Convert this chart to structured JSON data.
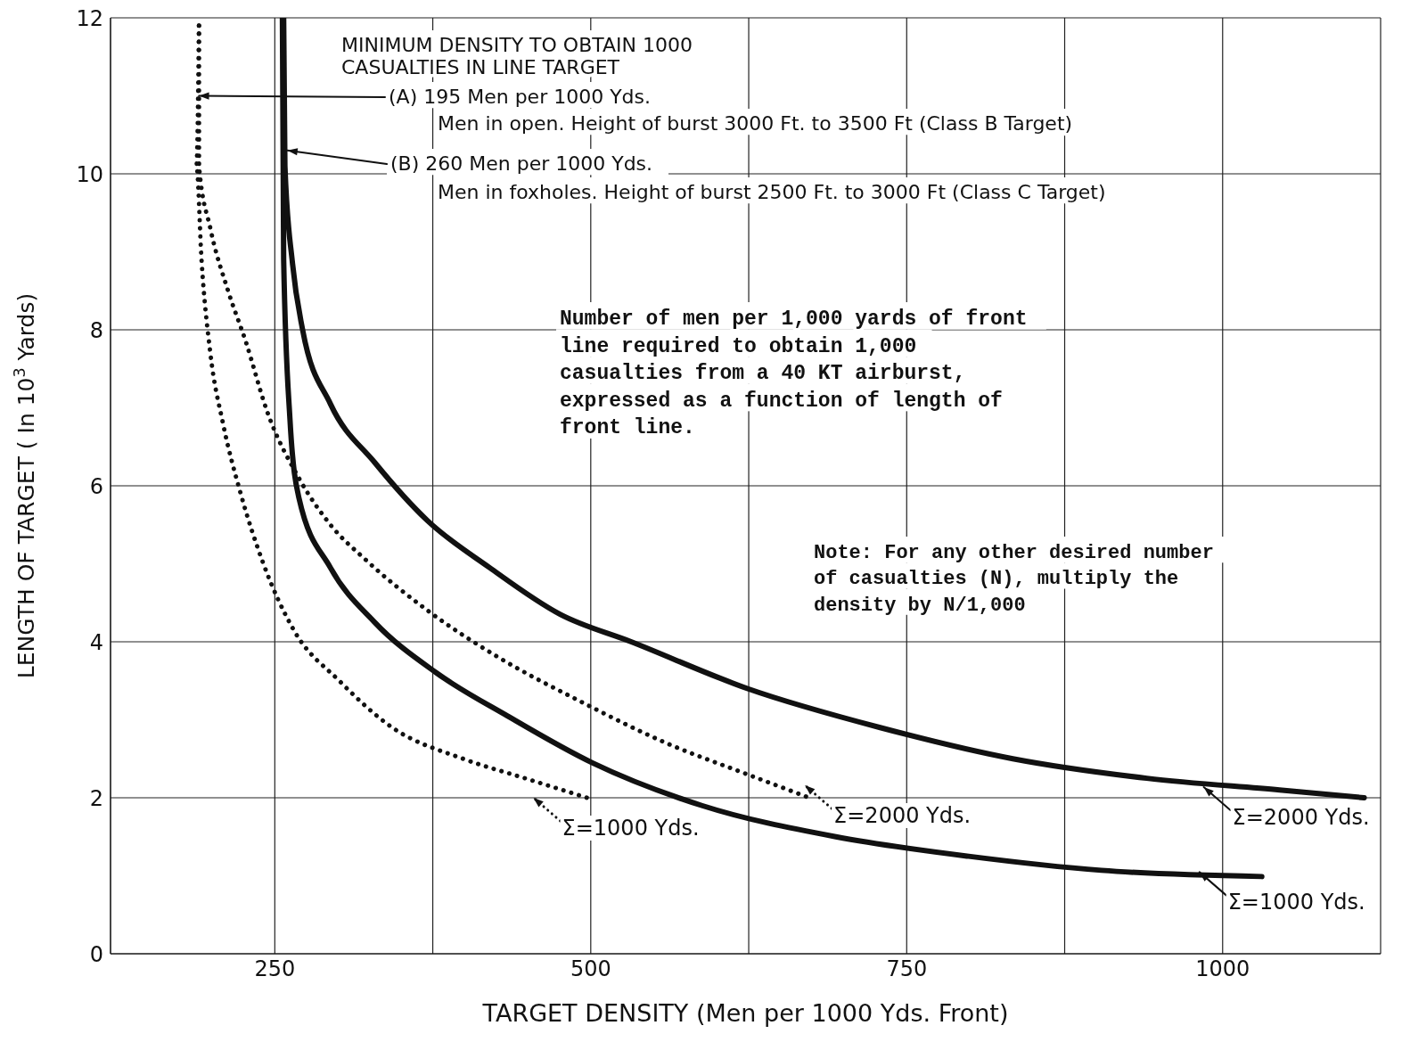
{
  "chart_data": {
    "type": "line",
    "title": "MINIMUM DENSITY TO OBTAIN 1000 CASUALTIES IN LINE TARGET",
    "xlabel": "TARGET DENSITY (Men per 1000 Yds. Front)",
    "ylabel": "LENGTH OF TARGET ( In 10$^{3}$ Yards)",
    "xlim": [
      120,
      1125
    ],
    "xticks": [
      250,
      {
        "value": 375,
        "label": null
      },
      500,
      {
        "value": 625,
        "label": null
      },
      750,
      {
        "value": 875,
        "label": null
      },
      1000,
      {
        "value": 1125,
        "label": null
      }
    ],
    "ylim": [
      0,
      12
    ],
    "yticks": [
      0,
      2,
      4,
      6,
      8,
      10,
      12
    ],
    "grid": true,
    "legend": "bottom right",
    "marker": "none",
    "annotations": [
      {
        "text": "(A) 195 Men per 1000 Yds.",
        "x": 190,
        "y": 11
      },
      "Men in open. Height of burst 3000 Ft. to 3500 Ft (Class B Target)",
      {
        "text": "(B) 260 Men per 1000 Yds.",
        "x": 260,
        "y": 10.3
      },
      "Men in foxholes. Height of burst 2500 Ft. to 3000 Ft (Class C Target)",
      "Number of men per 1,000 yards of front line required to obtain 1,000 casualties from a 40 KT airburst, expressed as a function of length of front line.",
      "Note: For any other desired number of casualties (N), multiply the density by N/1,000"
    ],
    "series": [
      {
        "name": "Σ=1000 Yds.",
        "color": "#111111",
        "line_style": "dotted",
        "x": [
          190,
          188,
          192,
          199,
          209,
          223,
          241,
          265,
          301,
          343,
          399,
          448,
          497
        ],
        "values": [
          11.9,
          10.1,
          8.9,
          7.7,
          6.8,
          5.9,
          5.0,
          4.15,
          3.5,
          2.9,
          2.5,
          2.25,
          2.0
        ]
      },
      {
        "name": "Σ=2000 Yds.",
        "color": "#111111",
        "line_style": "dotted",
        "x": [
          190,
          190,
          199,
          213,
          227,
          244,
          269,
          294,
          322,
          371,
          427,
          490,
          560,
          624,
          673
        ],
        "values": [
          11.9,
          10.1,
          9.3,
          8.5,
          7.85,
          6.95,
          6.1,
          5.5,
          5.05,
          4.4,
          3.8,
          3.25,
          2.7,
          2.3,
          2.0
        ]
      },
      {
        "name": "Σ=1000 Yds.",
        "color": "#111111",
        "line_style": "solid",
        "x": [
          256,
          257,
          262,
          269,
          294,
          329,
          378,
          434,
          501,
          588,
          694,
          799,
          904,
          1031
        ],
        "values": [
          12,
          8.9,
          6.85,
          5.85,
          4.95,
          4.25,
          3.6,
          3.05,
          2.45,
          1.9,
          1.5,
          1.25,
          1.07,
          0.99
        ]
      },
      {
        "name": "Σ=2000 Yds.",
        "color": "#111111",
        "line_style": "solid",
        "x": [
          257,
          258,
          264,
          272,
          294,
          329,
          371,
          420,
          476,
          532,
          624,
          729,
          834,
          940,
          1045,
          1112
        ],
        "values": [
          12,
          10.1,
          8.85,
          8.0,
          7.05,
          6.3,
          5.55,
          4.95,
          4.35,
          4.0,
          3.4,
          2.9,
          2.5,
          2.25,
          2.1,
          2.0
        ]
      }
    ]
  }
}
